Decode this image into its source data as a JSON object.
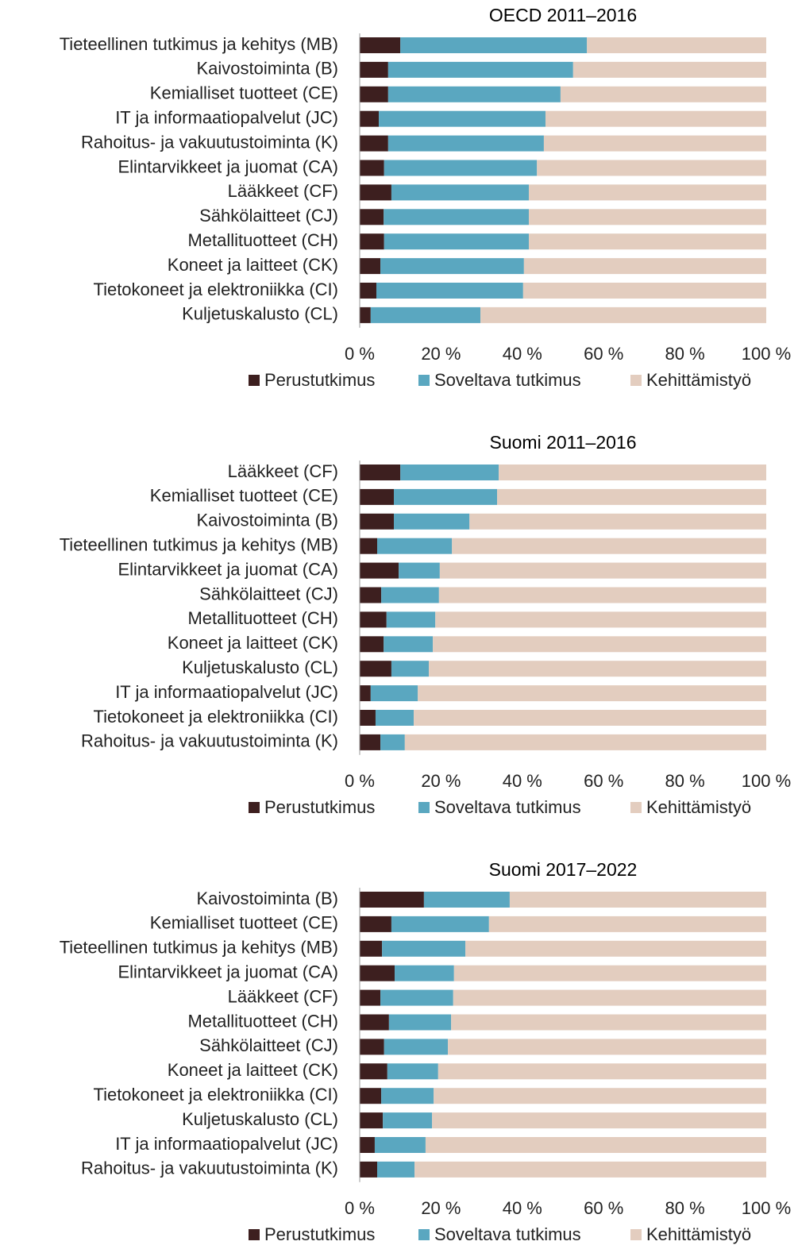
{
  "chart_data": [
    {
      "type": "bar",
      "orientation": "horizontal",
      "stacked": true,
      "title": "OECD 2011–2016",
      "categories": [
        "Tieteellinen tutkimus ja kehitys (MB)",
        "Kaivostoiminta (B)",
        "Kemialliset tuotteet (CE)",
        "IT ja informaatiopalvelut (JC)",
        "Rahoitus- ja vakuutustoiminta (K)",
        "Elintarvikkeet ja juomat (CA)",
        "Lääkkeet (CF)",
        "Sähkölaitteet (CJ)",
        "Metallituotteet (CH)",
        "Koneet ja laitteet (CK)",
        "Tietokoneet ja elektroniikka (CI)",
        "Kuljetuskalusto (CL)"
      ],
      "series": [
        {
          "name": "Perustutkimus",
          "color": "#3d1f1f",
          "values": [
            10,
            7,
            7,
            4.7,
            7,
            6,
            7.8,
            5.9,
            6,
            5.1,
            4.1,
            2.7
          ]
        },
        {
          "name": "Soveltava tutkimus",
          "color": "#5aa7c0",
          "values": [
            45.9,
            45.5,
            42.4,
            41,
            38.3,
            37.6,
            33.8,
            35.7,
            35.6,
            35.3,
            36.1,
            27
          ]
        },
        {
          "name": "Kehittämistyö",
          "color": "#e3cdbf",
          "values": [
            44.1,
            47.5,
            50.6,
            54.3,
            54.7,
            56.4,
            58.4,
            58.4,
            58.4,
            59.6,
            59.8,
            70.3
          ]
        }
      ],
      "xlim": [
        0,
        100
      ],
      "xticks": [
        {
          "value": 0,
          "label": "0 %"
        },
        {
          "value": 20,
          "label": "20 %"
        },
        {
          "value": 40,
          "label": "40 %"
        },
        {
          "value": 60,
          "label": "60 %"
        },
        {
          "value": 80,
          "label": "80 %"
        },
        {
          "value": 100,
          "label": "100 %"
        }
      ],
      "legend": "bottom"
    },
    {
      "type": "bar",
      "orientation": "horizontal",
      "stacked": true,
      "title": "Suomi 2011–2016",
      "categories": [
        "Lääkkeet (CF)",
        "Kemialliset tuotteet (CE)",
        "Kaivostoiminta (B)",
        "Tieteellinen tutkimus ja kehitys (MB)",
        "Elintarvikkeet ja juomat (CA)",
        "Sähkölaitteet (CJ)",
        "Metallituotteet (CH)",
        "Koneet ja laitteet (CK)",
        "Kuljetuskalusto (CL)",
        "IT ja informaatiopalvelut (JC)",
        "Tietokoneet ja elektroniikka (CI)",
        "Rahoitus- ja vakuutustoiminta (K)"
      ],
      "series": [
        {
          "name": "Perustutkimus",
          "color": "#3d1f1f",
          "values": [
            10,
            8.4,
            8.4,
            4.3,
            9.6,
            5.3,
            6.6,
            5.9,
            7.8,
            2.7,
            3.9,
            5.1
          ]
        },
        {
          "name": "Soveltava tutkimus",
          "color": "#5aa7c0",
          "values": [
            24.2,
            25.4,
            18.6,
            18.4,
            10.1,
            14.2,
            12,
            12.1,
            9.2,
            11.6,
            9.4,
            6
          ]
        },
        {
          "name": "Kehittämistyö",
          "color": "#e3cdbf",
          "values": [
            65.8,
            66.2,
            73,
            77.3,
            80.3,
            80.5,
            81.4,
            82,
            83,
            85.7,
            86.7,
            88.9
          ]
        }
      ],
      "xlim": [
        0,
        100
      ],
      "xticks": [
        {
          "value": 0,
          "label": "0 %"
        },
        {
          "value": 20,
          "label": "20 %"
        },
        {
          "value": 40,
          "label": "40 %"
        },
        {
          "value": 60,
          "label": "60 %"
        },
        {
          "value": 80,
          "label": "80 %"
        },
        {
          "value": 100,
          "label": "100 %"
        }
      ],
      "legend": "bottom"
    },
    {
      "type": "bar",
      "orientation": "horizontal",
      "stacked": true,
      "title": "Suomi 2017–2022",
      "categories": [
        "Kaivostoiminta (B)",
        "Kemialliset tuotteet (CE)",
        "Tieteellinen tutkimus ja kehitys (MB)",
        "Elintarvikkeet ja juomat (CA)",
        "Lääkkeet (CF)",
        "Metallituotteet (CH)",
        "Sähkölaitteet (CJ)",
        "Koneet ja laitteet (CK)",
        "Tietokoneet ja elektroniikka (CI)",
        "Kuljetuskalusto (CL)",
        "IT ja informaatiopalvelut (JC)",
        "Rahoitus- ja vakuutustoiminta (K)"
      ],
      "series": [
        {
          "name": "Perustutkimus",
          "color": "#3d1f1f",
          "values": [
            15.8,
            7.8,
            5.5,
            8.6,
            5.1,
            7.2,
            6,
            6.8,
            5.3,
            5.7,
            3.7,
            4.3
          ]
        },
        {
          "name": "Soveltava tutkimus",
          "color": "#5aa7c0",
          "values": [
            21.1,
            24,
            20.5,
            14.6,
            17.9,
            15.3,
            15.7,
            12.5,
            12.9,
            12.1,
            12.5,
            9.2
          ]
        },
        {
          "name": "Kehittämistyö",
          "color": "#e3cdbf",
          "values": [
            63.1,
            68.2,
            74,
            76.8,
            77,
            77.5,
            78.3,
            80.7,
            81.8,
            82.2,
            83.8,
            86.5
          ]
        }
      ],
      "xlim": [
        0,
        100
      ],
      "xticks": [
        {
          "value": 0,
          "label": "0 %"
        },
        {
          "value": 20,
          "label": "20 %"
        },
        {
          "value": 40,
          "label": "40 %"
        },
        {
          "value": 60,
          "label": "60 %"
        },
        {
          "value": 80,
          "label": "80 %"
        },
        {
          "value": 100,
          "label": "100 %"
        }
      ],
      "legend": "bottom"
    }
  ]
}
